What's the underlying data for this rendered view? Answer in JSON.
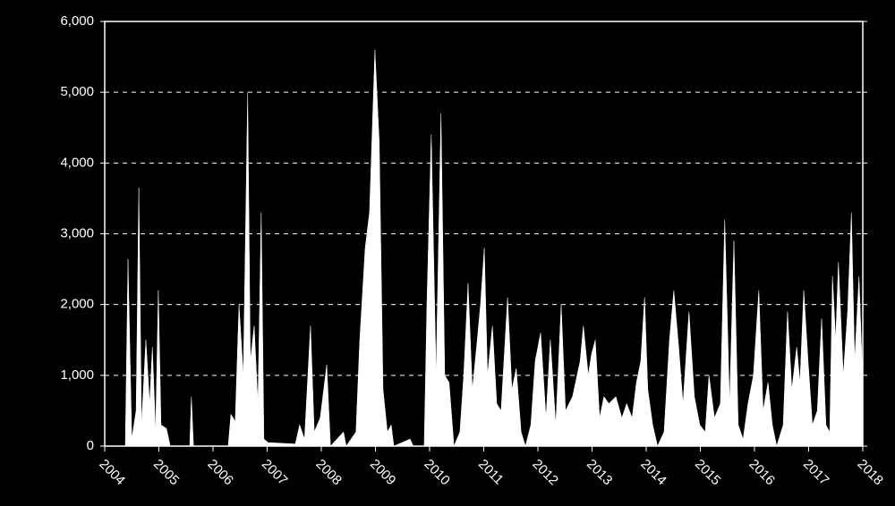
{
  "chart_data": {
    "type": "area",
    "color": "#ffffff",
    "background": "#000000",
    "grid": true,
    "x": [
      2004.0,
      2004.38,
      2004.43,
      2004.5,
      2004.58,
      2004.63,
      2004.68,
      2004.76,
      2004.83,
      2004.88,
      2004.94,
      2004.99,
      2005.04,
      2005.14,
      2005.21,
      2005.57,
      2005.6,
      2005.64,
      2006.28,
      2006.33,
      2006.41,
      2006.48,
      2006.56,
      2006.64,
      2006.69,
      2006.76,
      2006.83,
      2006.89,
      2006.94,
      2007.02,
      2007.52,
      2007.6,
      2007.69,
      2007.8,
      2007.87,
      2007.98,
      2008.1,
      2008.17,
      2008.41,
      2008.46,
      2008.64,
      2008.71,
      2008.81,
      2008.89,
      2008.99,
      2009.07,
      2009.14,
      2009.22,
      2009.29,
      2009.34,
      2009.64,
      2009.7,
      2009.9,
      2009.95,
      2010.03,
      2010.12,
      2010.21,
      2010.28,
      2010.36,
      2010.45,
      2010.56,
      2010.63,
      2010.71,
      2010.79,
      2010.88,
      2010.94,
      2011.01,
      2011.07,
      2011.16,
      2011.24,
      2011.32,
      2011.44,
      2011.52,
      2011.6,
      2011.69,
      2011.77,
      2011.87,
      2011.95,
      2012.05,
      2012.15,
      2012.23,
      2012.33,
      2012.43,
      2012.51,
      2012.64,
      2012.78,
      2012.84,
      2012.93,
      2012.99,
      2013.06,
      2013.14,
      2013.22,
      2013.31,
      2013.44,
      2013.55,
      2013.64,
      2013.74,
      2013.82,
      2013.9,
      2013.97,
      2014.03,
      2014.12,
      2014.21,
      2014.33,
      2014.43,
      2014.51,
      2014.6,
      2014.68,
      2014.79,
      2014.89,
      2014.99,
      2015.09,
      2015.16,
      2015.26,
      2015.37,
      2015.45,
      2015.54,
      2015.62,
      2015.7,
      2015.79,
      2015.88,
      2015.98,
      2016.08,
      2016.16,
      2016.25,
      2016.33,
      2016.41,
      2016.53,
      2016.61,
      2016.69,
      2016.78,
      2016.84,
      2016.91,
      2016.99,
      2017.07,
      2017.16,
      2017.24,
      2017.32,
      2017.39,
      2017.44,
      2017.5,
      2017.55,
      2017.64,
      2017.72,
      2017.79,
      2017.85,
      2017.93,
      2018.0
    ],
    "values": [
      0,
      0,
      2640,
      100,
      500,
      3650,
      300,
      1500,
      600,
      1400,
      200,
      2200,
      300,
      250,
      0,
      0,
      700,
      0,
      0,
      450,
      350,
      2000,
      1000,
      5000,
      1200,
      1700,
      600,
      3300,
      100,
      50,
      30,
      300,
      100,
      1700,
      200,
      400,
      1150,
      0,
      200,
      0,
      200,
      1500,
      2800,
      3300,
      5600,
      4300,
      800,
      200,
      300,
      0,
      100,
      0,
      0,
      2000,
      4400,
      1000,
      4700,
      1000,
      900,
      0,
      200,
      1000,
      2300,
      800,
      1500,
      2000,
      2800,
      1000,
      1700,
      600,
      500,
      2100,
      800,
      1100,
      200,
      0,
      300,
      1200,
      1600,
      400,
      1500,
      300,
      2000,
      500,
      700,
      1200,
      1700,
      1000,
      1300,
      1500,
      400,
      700,
      600,
      700,
      400,
      600,
      400,
      900,
      1200,
      2100,
      800,
      300,
      0,
      200,
      1500,
      2200,
      1400,
      600,
      1900,
      700,
      300,
      200,
      1000,
      400,
      600,
      3200,
      600,
      2900,
      300,
      100,
      600,
      1000,
      2200,
      500,
      900,
      300,
      0,
      300,
      1900,
      800,
      1400,
      900,
      2200,
      1200,
      300,
      500,
      1800,
      300,
      200,
      2400,
      1500,
      2600,
      1000,
      1900,
      3300,
      1200,
      2400,
      900
    ],
    "xlim": [
      2004,
      2018
    ],
    "xticks": [
      2004,
      2005,
      2006,
      2007,
      2008,
      2009,
      2010,
      2011,
      2012,
      2013,
      2014,
      2015,
      2016,
      2017,
      2018
    ],
    "ylim": [
      0,
      6000
    ],
    "yticks": [
      0,
      {
        "value": 1000,
        "label": "1,000"
      },
      {
        "value": 2000,
        "label": "2,000"
      },
      {
        "value": 3000,
        "label": "3,000"
      },
      {
        "value": 4000,
        "label": "4,000"
      },
      {
        "value": 5000,
        "label": "5,000"
      },
      {
        "value": 6000,
        "label": "6,000"
      }
    ]
  }
}
